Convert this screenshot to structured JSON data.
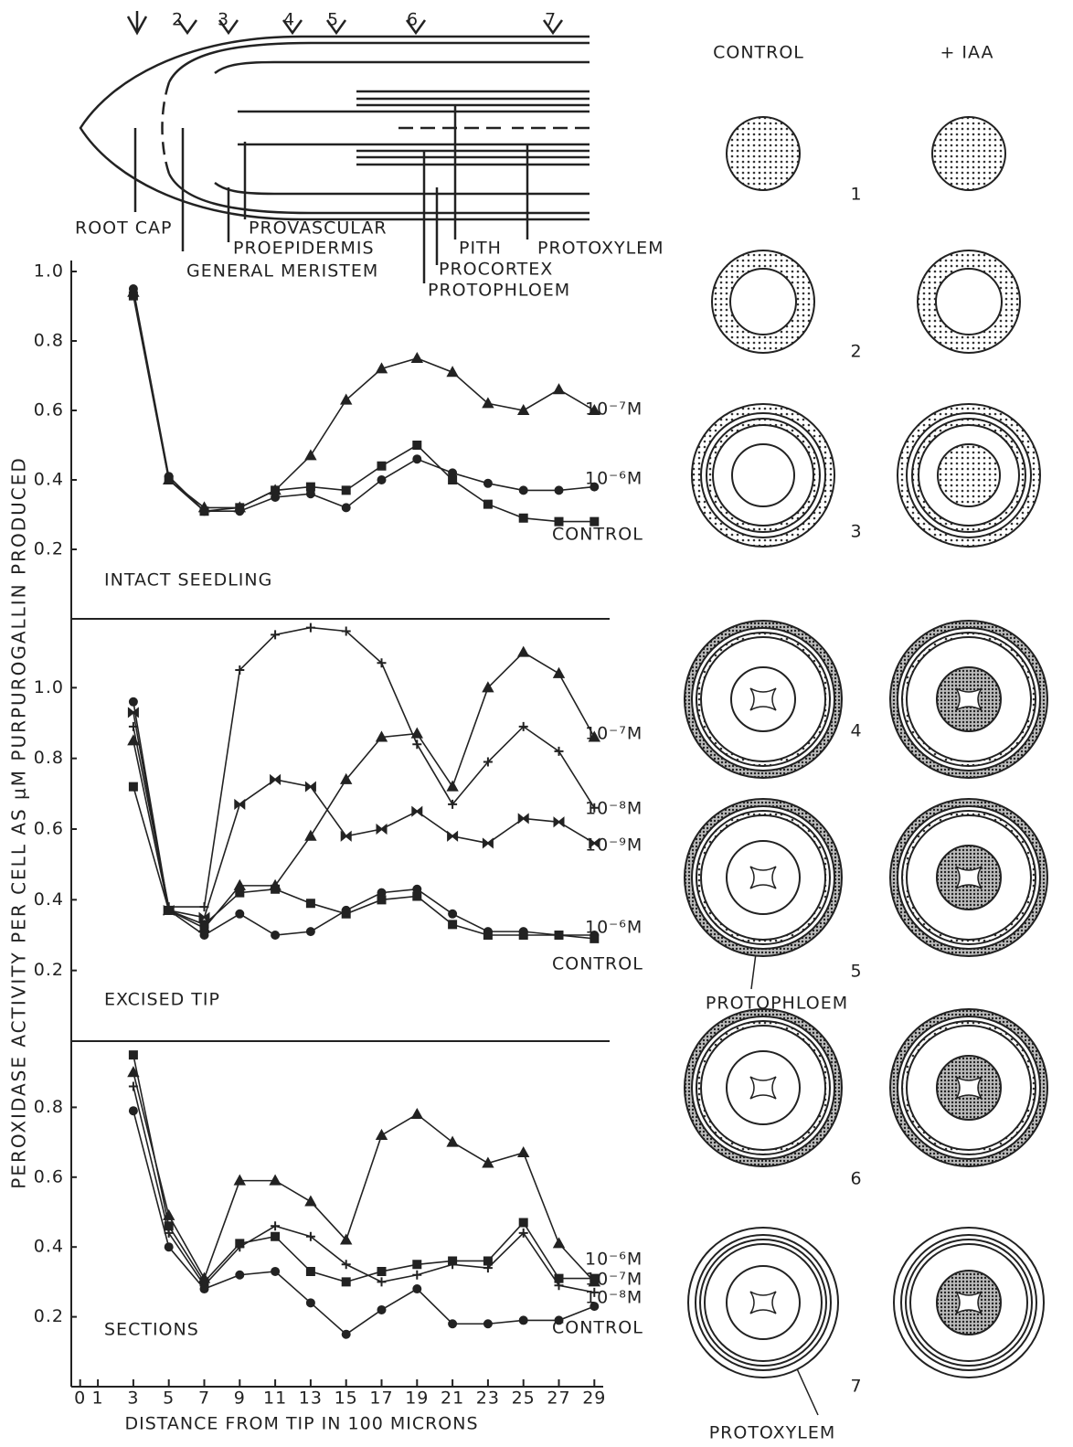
{
  "root_diagram": {
    "section_markers": [
      "2",
      "3",
      "4",
      "5",
      "6",
      "7"
    ],
    "tissues": [
      "ROOT CAP",
      "PROVASCULAR",
      "PROEPIDERMIS",
      "GENERAL MERISTEM",
      "PITH",
      "PROTOXYLEM",
      "PROCORTEX",
      "PROTOPHLOEM"
    ]
  },
  "cross_sections": {
    "columns": [
      "CONTROL",
      "+ IAA"
    ],
    "sections": [
      "1",
      "2",
      "3",
      "4",
      "5",
      "6",
      "7"
    ],
    "labels": [
      "PROTOPHLOEM",
      "PROTOXYLEM"
    ]
  },
  "y_label": "PEROXIDASE ACTIVITY PER CELL AS μM PURPUROGALLIN PRODUCED",
  "chart_data": [
    {
      "type": "line",
      "title": "INTACT SEEDLING",
      "x": [
        3,
        5,
        7,
        9,
        11,
        13,
        15,
        17,
        19,
        21,
        23,
        25,
        27,
        29
      ],
      "xlim": [
        -0.5,
        29.5
      ],
      "ylim": [
        0,
        1.0
      ],
      "yticks": [
        {
          "value": 1.0,
          "label": "1.0"
        },
        0.8,
        0.6,
        0.4,
        0.2
      ],
      "series": [
        {
          "name": "10⁻⁷M",
          "color": "#222",
          "marker": "triangle",
          "values": [
            0.94,
            0.4,
            0.32,
            0.32,
            0.37,
            0.47,
            0.63,
            0.72,
            0.75,
            0.71,
            0.62,
            0.6,
            0.66,
            0.6
          ]
        },
        {
          "name": "10⁻⁶M",
          "color": "#222",
          "marker": "circle",
          "values": [
            0.95,
            0.41,
            0.31,
            0.31,
            0.35,
            0.36,
            0.32,
            0.4,
            0.46,
            0.42,
            0.39,
            0.37,
            0.37,
            0.38
          ]
        },
        {
          "name": "CONTROL",
          "color": "#222",
          "marker": "square",
          "values": [
            0.93,
            0.4,
            0.31,
            0.32,
            0.37,
            0.38,
            0.37,
            0.44,
            0.5,
            0.4,
            0.33,
            0.29,
            0.28,
            0.28
          ]
        }
      ]
    },
    {
      "type": "line",
      "title": "EXCISED TIP",
      "x": [
        3,
        5,
        7,
        9,
        11,
        13,
        15,
        17,
        19,
        21,
        23,
        25,
        27,
        29
      ],
      "xlim": [
        -0.5,
        29.5
      ],
      "ylim": [
        0,
        1.2
      ],
      "yticks": [
        {
          "value": 1.0,
          "label": "1.0"
        },
        0.8,
        0.6,
        0.4,
        0.2
      ],
      "series": [
        {
          "name": "10⁻⁷M",
          "color": "#222",
          "marker": "triangle",
          "values": [
            0.85,
            0.37,
            0.32,
            0.44,
            0.44,
            0.58,
            0.74,
            0.86,
            0.87,
            0.72,
            1.0,
            1.1,
            1.04,
            0.86
          ]
        },
        {
          "name": "10⁻⁸M",
          "color": "#222",
          "marker": "plus",
          "values": [
            0.89,
            0.38,
            0.38,
            1.05,
            1.15,
            1.17,
            1.16,
            1.07,
            0.84,
            0.67,
            0.79,
            0.89,
            0.82,
            0.66
          ]
        },
        {
          "name": "10⁻⁹M",
          "color": "#222",
          "marker": "bowtie",
          "values": [
            0.93,
            0.37,
            0.35,
            0.67,
            0.74,
            0.72,
            0.58,
            0.6,
            0.65,
            0.58,
            0.56,
            0.63,
            0.62,
            0.56
          ]
        },
        {
          "name": "10⁻⁶M",
          "color": "#222",
          "marker": "circle",
          "values": [
            0.96,
            0.37,
            0.3,
            0.36,
            0.3,
            0.31,
            0.37,
            0.42,
            0.43,
            0.36,
            0.31,
            0.31,
            0.3,
            0.3
          ]
        },
        {
          "name": "CONTROL",
          "color": "#222",
          "marker": "square",
          "values": [
            0.72,
            0.37,
            0.33,
            0.42,
            0.43,
            0.39,
            0.36,
            0.4,
            0.41,
            0.33,
            0.3,
            0.3,
            0.3,
            0.29
          ]
        }
      ]
    },
    {
      "type": "line",
      "title": "SECTIONS",
      "x": [
        3,
        5,
        7,
        9,
        11,
        13,
        15,
        17,
        19,
        21,
        23,
        25,
        27,
        29
      ],
      "xlim": [
        -0.5,
        29.5
      ],
      "ylim": [
        0,
        1.0
      ],
      "yticks": [
        0.8,
        0.6,
        0.4,
        0.2
      ],
      "xticks": [
        0,
        1,
        3,
        5,
        7,
        9,
        11,
        13,
        15,
        17,
        19,
        21,
        23,
        25,
        27,
        29
      ],
      "x_label": "DISTANCE FROM TIP IN 100 MICRONS",
      "series": [
        {
          "name": "10⁻⁶M",
          "color": "#222",
          "marker": "triangle",
          "values": [
            0.9,
            0.49,
            0.31,
            0.59,
            0.59,
            0.53,
            0.42,
            0.72,
            0.78,
            0.7,
            0.64,
            0.67,
            0.41,
            0.3
          ]
        },
        {
          "name": "10⁻⁷M",
          "color": "#222",
          "marker": "square",
          "values": [
            0.95,
            0.46,
            0.3,
            0.41,
            0.43,
            0.33,
            0.3,
            0.33,
            0.35,
            0.36,
            0.36,
            0.47,
            0.31,
            0.31
          ]
        },
        {
          "name": "10⁻⁸M",
          "color": "#222",
          "marker": "plus",
          "values": [
            0.86,
            0.44,
            0.29,
            0.4,
            0.46,
            0.43,
            0.35,
            0.3,
            0.32,
            0.35,
            0.34,
            0.44,
            0.29,
            0.27
          ]
        },
        {
          "name": "CONTROL",
          "color": "#222",
          "marker": "circle",
          "values": [
            0.79,
            0.4,
            0.28,
            0.32,
            0.33,
            0.24,
            0.15,
            0.22,
            0.28,
            0.18,
            0.18,
            0.19,
            0.19,
            0.23
          ]
        }
      ]
    }
  ]
}
